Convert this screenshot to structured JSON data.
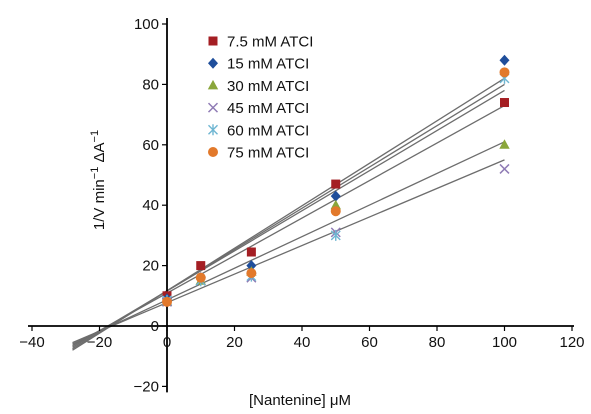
{
  "chart_data": {
    "type": "scatter",
    "xlabel": "[Nantenine] μM",
    "ylabel_parts": {
      "base": "1/V min",
      "sup1": "−1",
      "mid": " ΔA",
      "sup2": "−1"
    },
    "xlim": [
      -40,
      120
    ],
    "ylim": [
      -20,
      100
    ],
    "x_ticks": [
      -40,
      -20,
      0,
      20,
      40,
      60,
      80,
      100,
      120
    ],
    "y_ticks": [
      -20,
      0,
      20,
      40,
      60,
      80,
      100
    ],
    "x_tick_labels": [
      "−40",
      "−20",
      "0",
      "20",
      "40",
      "60",
      "80",
      "100",
      "120"
    ],
    "y_tick_labels": [
      "−20",
      "0",
      "20",
      "40",
      "60",
      "80",
      "100"
    ],
    "grid": false,
    "legend_position": "top-center",
    "trendline_color": "#6d6d6d",
    "series": [
      {
        "name": "7.5 mM ATCI",
        "marker": "square",
        "color": "#a41e23",
        "x": [
          0,
          10,
          25,
          50,
          100
        ],
        "y": [
          10,
          20,
          24.5,
          47,
          74
        ],
        "trend_x": [
          -28,
          100
        ],
        "trend_y": [
          -6.5,
          73
        ]
      },
      {
        "name": "15 mM ATCI",
        "marker": "diamond",
        "color": "#1f4e9b",
        "x": [
          0,
          10,
          25,
          50,
          100
        ],
        "y": [
          9,
          16,
          20,
          43,
          88
        ],
        "trend_x": [
          -28,
          100
        ],
        "trend_y": [
          -8,
          82
        ]
      },
      {
        "name": "30 mM ATCI",
        "marker": "triangle",
        "color": "#8aa63b",
        "x": [
          0,
          10,
          25,
          50,
          100
        ],
        "y": [
          8,
          15,
          18,
          40,
          60
        ],
        "trend_x": [
          -28,
          100
        ],
        "trend_y": [
          -6,
          61
        ]
      },
      {
        "name": "45 mM ATCI",
        "marker": "x",
        "color": "#8f7bb5",
        "x": [
          0,
          10,
          25,
          50,
          100
        ],
        "y": [
          8,
          15,
          16,
          31,
          52
        ],
        "trend_x": [
          -28,
          100
        ],
        "trend_y": [
          -5.5,
          55
        ]
      },
      {
        "name": "60 mM ATCI",
        "marker": "star",
        "color": "#6fb6d2",
        "x": [
          0,
          10,
          25,
          50,
          100
        ],
        "y": [
          8.5,
          15,
          16.5,
          30,
          82
        ],
        "trend_x": [
          -28,
          100
        ],
        "trend_y": [
          -7,
          78
        ]
      },
      {
        "name": "75 mM ATCI",
        "marker": "circle",
        "color": "#e2792b",
        "x": [
          0,
          10,
          25,
          50,
          100
        ],
        "y": [
          8,
          16,
          17.5,
          38,
          84
        ],
        "trend_x": [
          -28,
          100
        ],
        "trend_y": [
          -7.5,
          80
        ]
      }
    ]
  }
}
